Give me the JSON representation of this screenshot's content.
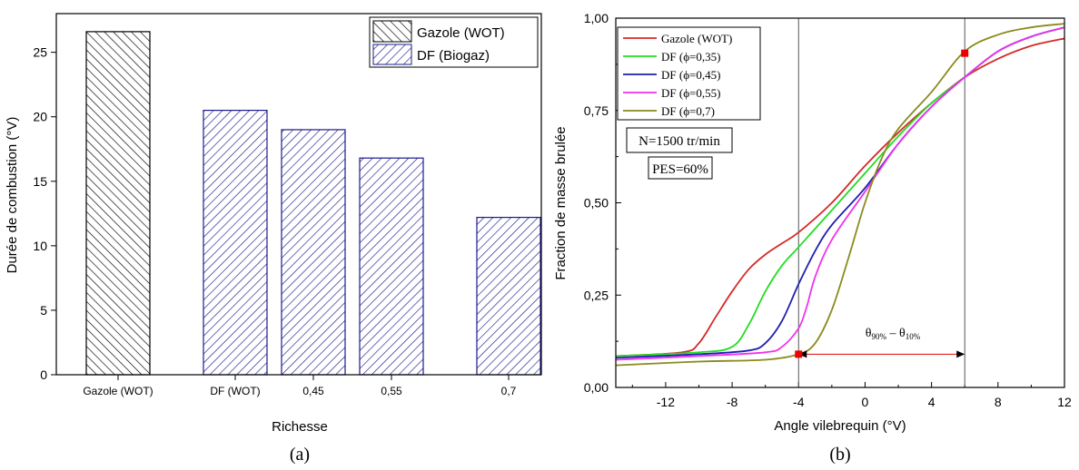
{
  "chart_data": [
    {
      "panel": "(a)",
      "type": "bar",
      "categories": [
        "Gazole (WOT)",
        "DF (WOT)",
        "0,45",
        "0,55",
        "0,7"
      ],
      "values": [
        26.6,
        20.5,
        19.0,
        16.8,
        12.2
      ],
      "series_of_bar": [
        "Gazole (WOT)",
        "DF (Biogaz)",
        "DF (Biogaz)",
        "DF (Biogaz)",
        "DF (Biogaz)"
      ],
      "series": [
        {
          "name": "Gazole (WOT)",
          "color": "#000000",
          "pattern": "hatch-backslash"
        },
        {
          "name": "DF (Biogaz)",
          "color": "#1a1a8c",
          "pattern": "hatch-slash"
        }
      ],
      "xlabel": "Richesse",
      "ylabel": "Durée de combustion (°V)",
      "ylim": [
        0,
        28
      ],
      "yticks": [
        0,
        5,
        10,
        15,
        20,
        25
      ],
      "ytick_labels": [
        "0",
        "5",
        "10",
        "15",
        "20",
        "25"
      ],
      "legend_position": "top-right",
      "caption": "(a)"
    },
    {
      "panel": "(b)",
      "type": "line",
      "xlabel": "Angle vilebrequin (°V)",
      "ylabel": "Fraction de masse brulée",
      "xlim": [
        -15,
        12
      ],
      "ylim": [
        0,
        1
      ],
      "xticks": [
        -12,
        -8,
        -4,
        0,
        4,
        8,
        12
      ],
      "xtick_labels": [
        "-12",
        "-8",
        "-4",
        "0",
        "4",
        "8",
        "12"
      ],
      "yticks": [
        0,
        0.25,
        0.5,
        0.75,
        1
      ],
      "ytick_labels": [
        "0,00",
        "0,25",
        "0,50",
        "0,75",
        "1,00"
      ],
      "legend_position": "top-left",
      "series": [
        {
          "name": "Gazole (WOT)",
          "color": "#d42a2a",
          "x": [
            -15,
            -11,
            -10,
            -9,
            -8,
            -7,
            -6,
            -5,
            -4,
            -2,
            0,
            2,
            4,
            6,
            8,
            10,
            12
          ],
          "y": [
            0.085,
            0.095,
            0.12,
            0.19,
            0.26,
            0.32,
            0.36,
            0.39,
            0.42,
            0.5,
            0.6,
            0.69,
            0.77,
            0.84,
            0.89,
            0.925,
            0.945
          ]
        },
        {
          "name": "DF (ϕ=0,35)",
          "color": "#22dd22",
          "x": [
            -15,
            -10,
            -8,
            -7,
            -6,
            -5,
            -4,
            -2,
            0,
            2,
            4,
            6,
            8,
            10,
            12
          ],
          "y": [
            0.085,
            0.095,
            0.11,
            0.17,
            0.26,
            0.33,
            0.38,
            0.48,
            0.58,
            0.68,
            0.77,
            0.84,
            0.91,
            0.95,
            0.975
          ]
        },
        {
          "name": "DF (ϕ=0,45)",
          "color": "#1f1fb0",
          "x": [
            -15,
            -10,
            -7,
            -6,
            -5,
            -4,
            -3,
            -2,
            0,
            2,
            4,
            6,
            8,
            10,
            12
          ],
          "y": [
            0.08,
            0.09,
            0.1,
            0.12,
            0.18,
            0.28,
            0.37,
            0.44,
            0.54,
            0.66,
            0.76,
            0.84,
            0.91,
            0.95,
            0.975
          ]
        },
        {
          "name": "DF (ϕ=0,55)",
          "color": "#ee33ee",
          "x": [
            -15,
            -10,
            -6,
            -5,
            -4,
            -3.5,
            -3,
            -2,
            0,
            2,
            4,
            6,
            8,
            10,
            12
          ],
          "y": [
            0.075,
            0.085,
            0.095,
            0.11,
            0.16,
            0.22,
            0.3,
            0.4,
            0.53,
            0.66,
            0.76,
            0.84,
            0.91,
            0.95,
            0.975
          ]
        },
        {
          "name": "DF (ϕ=0,7)",
          "color": "#8a8a1e",
          "x": [
            -15,
            -10,
            -6,
            -4,
            -3,
            -2,
            -1,
            0,
            1,
            2,
            4,
            6,
            8,
            10,
            12
          ],
          "y": [
            0.06,
            0.07,
            0.075,
            0.09,
            0.12,
            0.21,
            0.35,
            0.5,
            0.62,
            0.7,
            0.8,
            0.91,
            0.955,
            0.975,
            0.985
          ]
        }
      ],
      "vertical_lines_x": [
        -4,
        6
      ],
      "markers": [
        {
          "x": -4,
          "y": 0.09,
          "color": "#ee0000"
        },
        {
          "x": 6,
          "y": 0.905,
          "color": "#ee0000"
        }
      ],
      "annotations": {
        "speed": "N=1500 tr/min",
        "pes": "PES=60%",
        "duration_theta": "θ",
        "duration_90_sub": "90%",
        "duration_minus": " – ",
        "duration_10_sub": "10%",
        "arrow_from_x": -4,
        "arrow_to_x": 6,
        "arrow_y": 0.09,
        "arrow_color": "#ee0000"
      },
      "caption": "(b)"
    }
  ]
}
